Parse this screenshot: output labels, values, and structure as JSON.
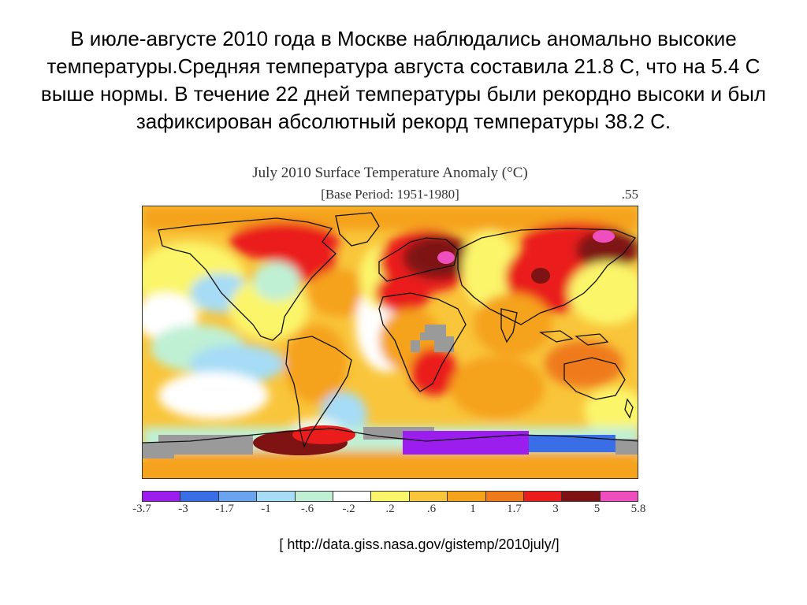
{
  "slide": {
    "text": "В июле-августе 2010 года в Москве наблюдались аномально высокие температуры.Средняя температура августа составила 21.8 С, что на 5.4 С выше нормы. В течение 22 дней температуры были рекордно высоки и был зафиксирован абсолютный рекорд температуры 38.2 С.",
    "source": "[ http://data.giss.nasa.gov/gistemp/2010july/]"
  },
  "map": {
    "title": "July 2010 Surface Temperature Anomaly (°C)",
    "subtitle": "[Base Period: 1951-1980]",
    "global_mean": ".55"
  },
  "legend": {
    "ticks": [
      "-3.7",
      "-3",
      "-1.7",
      "-1",
      "-.6",
      "-.2",
      ".2",
      ".6",
      "1",
      "1.7",
      "3",
      "5",
      "5.8"
    ],
    "colors": [
      "#9b1eef",
      "#3a6ee6",
      "#6aa3ee",
      "#a6dcf5",
      "#bff0d4",
      "#ffffff",
      "#fbf56a",
      "#f9c53a",
      "#f5a21c",
      "#ef7a1c",
      "#ea1c1c",
      "#7f1212"
    ],
    "last_color": "#ef4fbe"
  }
}
